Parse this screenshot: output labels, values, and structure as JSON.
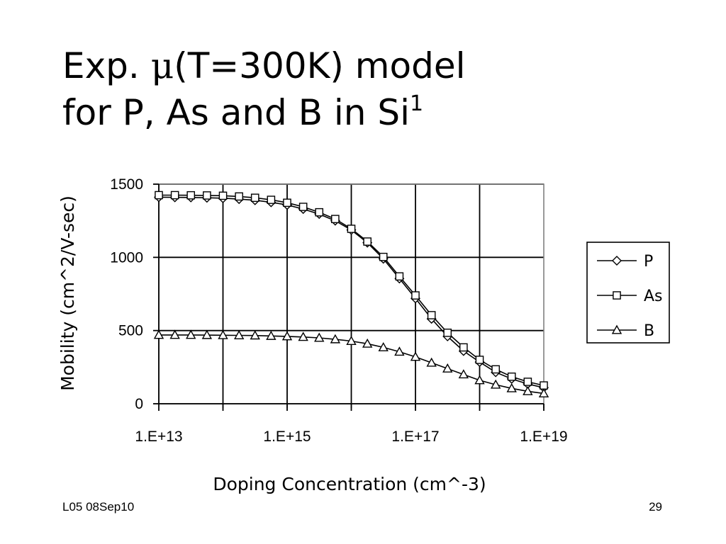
{
  "slide": {
    "title_line1_prefix": "Exp. ",
    "title_mu": "μ",
    "title_line1_suffix": "(T=300K) model",
    "title_line2": "for P, As and B in Si",
    "title_superscript": "1",
    "footer_left": "L05 08Sep10",
    "page_number": "29"
  },
  "chart_data": {
    "type": "scatter",
    "title": "",
    "xlabel": "Doping Concentration (cm^-3)",
    "ylabel": "Mobility (cm^2/V-sec)",
    "x_scale": "log",
    "xlim": [
      10000000000000.0,
      1e+19
    ],
    "ylim": [
      0,
      1500
    ],
    "x_tick_labels": [
      "1.E+13",
      "1.E+15",
      "1.E+17",
      "1.E+19"
    ],
    "y_tick_labels": [
      "1500",
      "1000",
      "500",
      "0"
    ],
    "y_ticks": [
      1500,
      1000,
      500,
      0
    ],
    "grid": true,
    "legend_position": "right",
    "line_color": "#000000",
    "series": [
      {
        "name": "P",
        "marker": "diamond",
        "x": [
          10000000000000.0,
          17800000000000.0,
          31600000000000.0,
          56200000000000.0,
          100000000000000.0,
          178000000000000.0,
          316000000000000.0,
          562000000000000.0,
          1000000000000000.0,
          1780000000000000.0,
          3160000000000000.0,
          5620000000000000.0,
          1e+16,
          1.78e+16,
          3.16e+16,
          5.62e+16,
          1e+17,
          1.78e+17,
          3.16e+17,
          5.62e+17,
          1e+18,
          1.78e+18,
          3.16e+18,
          5.62e+18,
          1e+19
        ],
        "y": [
          1411,
          1410,
          1409,
          1407,
          1404,
          1398,
          1390,
          1376,
          1358,
          1330,
          1296,
          1250,
          1187,
          1100,
          990,
          855,
          720,
          580,
          460,
          360,
          285,
          215,
          170,
          135,
          110
        ]
      },
      {
        "name": "As",
        "marker": "square",
        "x": [
          10000000000000.0,
          17800000000000.0,
          31600000000000.0,
          56200000000000.0,
          100000000000000.0,
          178000000000000.0,
          316000000000000.0,
          562000000000000.0,
          1000000000000000.0,
          1780000000000000.0,
          3160000000000000.0,
          5620000000000000.0,
          1e+16,
          1.78e+16,
          3.16e+16,
          5.62e+16,
          1e+17,
          1.78e+17,
          3.16e+17,
          5.62e+17,
          1e+18,
          1.78e+18,
          3.16e+18,
          5.62e+18,
          1e+19
        ],
        "y": [
          1425,
          1425,
          1424,
          1423,
          1421,
          1416,
          1407,
          1393,
          1373,
          1345,
          1308,
          1262,
          1195,
          1108,
          1003,
          870,
          740,
          605,
          485,
          385,
          300,
          235,
          185,
          150,
          125
        ]
      },
      {
        "name": "B",
        "marker": "triangle",
        "x": [
          10000000000000.0,
          17800000000000.0,
          31600000000000.0,
          56200000000000.0,
          100000000000000.0,
          178000000000000.0,
          316000000000000.0,
          562000000000000.0,
          1000000000000000.0,
          1780000000000000.0,
          3160000000000000.0,
          5620000000000000.0,
          1e+16,
          1.78e+16,
          3.16e+16,
          5.62e+16,
          1e+17,
          1.78e+17,
          3.16e+17,
          5.62e+17,
          1e+18,
          1.78e+18,
          3.16e+18,
          5.62e+18,
          1e+19
        ],
        "y": [
          470,
          470,
          470,
          469,
          468,
          467,
          466,
          463,
          460,
          456,
          450,
          440,
          428,
          410,
          385,
          355,
          320,
          280,
          240,
          200,
          160,
          130,
          105,
          85,
          70
        ]
      }
    ]
  }
}
